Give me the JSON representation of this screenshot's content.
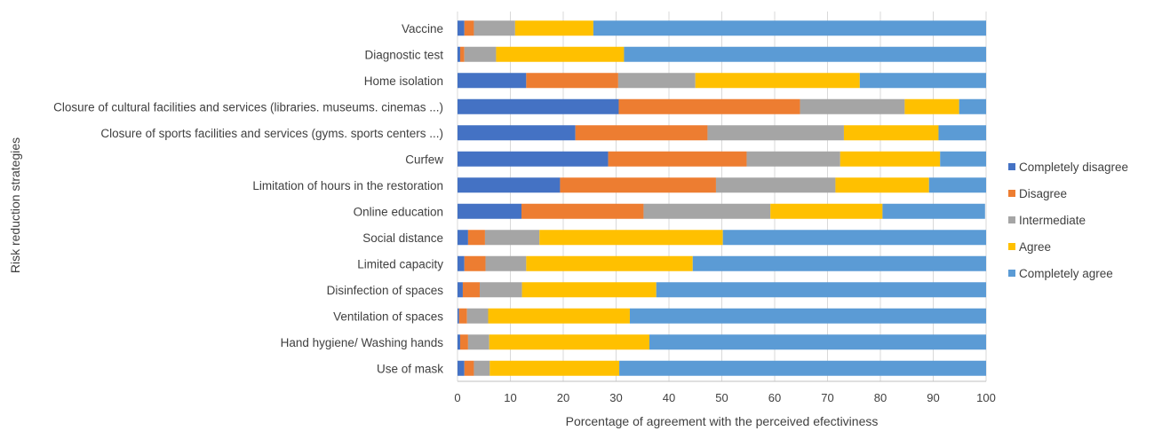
{
  "chart_data": {
    "type": "bar",
    "orientation": "horizontal",
    "stacked": true,
    "title": "",
    "xlabel": "Porcentage of agreement with the perceived efectiviness",
    "ylabel": "Risk reduction strategies",
    "xlim": [
      0,
      100
    ],
    "x_ticks": [
      "0",
      "10",
      "20",
      "30",
      "40",
      "50",
      "60",
      "70",
      "80",
      "90",
      "100"
    ],
    "grid": true,
    "legend_position": "right",
    "categories": [
      "Vaccine",
      "Diagnostic test",
      "Home isolation",
      "Closure of cultural facilities and services (libraries. museums. cinemas ...)",
      "Closure of sports facilities and services (gyms. sports centers ...)",
      "Curfew",
      "Limitation of hours in the restoration",
      "Online education",
      "Social distance",
      "Limited capacity",
      "Disinfection of spaces",
      "Ventilation of spaces",
      "Hand hygiene/ Washing hands",
      "Use of mask"
    ],
    "series": [
      {
        "name": "Completely disagree",
        "color": "#4472C4",
        "values": [
          1.3,
          0.5,
          13,
          30.5,
          22.3,
          28.5,
          19.4,
          12.1,
          2,
          1.3,
          1,
          0.3,
          0.5,
          1.3
        ]
      },
      {
        "name": "Disagree",
        "color": "#ED7D31",
        "values": [
          1.8,
          0.8,
          17.4,
          34.3,
          25,
          26.2,
          29.5,
          23.1,
          3.2,
          4,
          3.2,
          1.5,
          1.5,
          1.8
        ]
      },
      {
        "name": "Intermediate",
        "color": "#A5A5A5",
        "values": [
          7.8,
          6,
          14.6,
          19.8,
          25.8,
          17.7,
          22.6,
          24,
          10.3,
          7.7,
          8,
          4,
          4,
          3
        ]
      },
      {
        "name": "Agree",
        "color": "#FFC000",
        "values": [
          14.8,
          24.2,
          31.1,
          10.3,
          17.9,
          18.9,
          17.7,
          21.2,
          34.7,
          31.5,
          25.4,
          26.8,
          30.3,
          24.5
        ]
      },
      {
        "name": "Completely agree",
        "color": "#5B9BD5",
        "values": [
          74.3,
          68.5,
          23.9,
          5.1,
          9,
          8.7,
          10.8,
          19.4,
          49.8,
          55.5,
          62.4,
          67.4,
          63.7,
          69.4
        ]
      }
    ]
  }
}
